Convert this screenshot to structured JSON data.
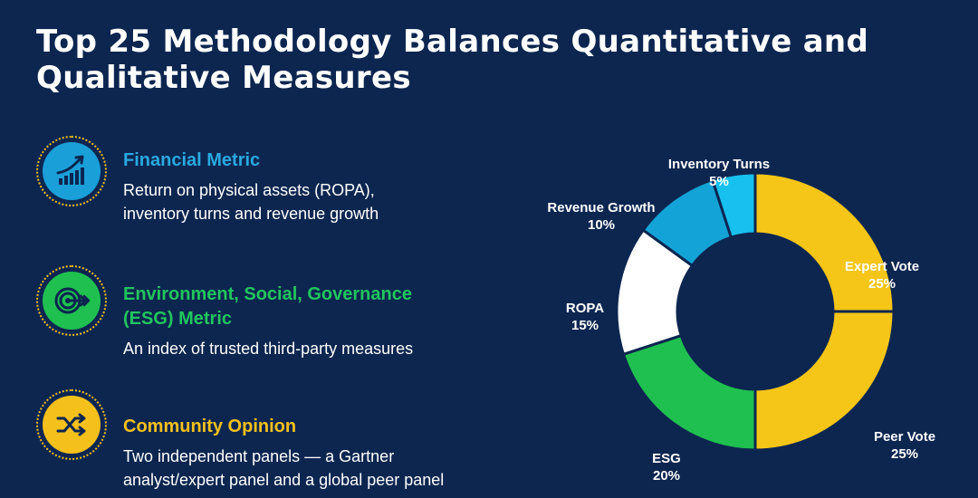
{
  "title": {
    "line1": "Top 25 Methodology Balances Quantitative and",
    "line2": "Qualitative Measures"
  },
  "items": [
    {
      "heading": "Financial Metric",
      "heading_color": "#2aa9e0",
      "desc_line1": "Return on physical assets (ROPA),",
      "desc_line2": "inventory turns and revenue growth",
      "icon": "growth-chart-icon",
      "icon_color": "#1a9fd8"
    },
    {
      "heading_line1": "Environment, Social, Governance",
      "heading_line2": "(ESG) Metric",
      "heading_color": "#22c55e",
      "desc_line1": "An index of trusted third-party measures",
      "icon": "target-arrow-icon",
      "icon_color": "#1fc04f"
    },
    {
      "heading": "Community Opinion",
      "heading_color": "#f4c01c",
      "desc_line1": "Two independent panels — a Gartner",
      "desc_line2": "analyst/expert panel and a global peer panel",
      "icon": "shuffle-icon",
      "icon_color": "#f4c01c"
    }
  ],
  "chart_data": {
    "type": "pie",
    "style": "donut",
    "slices": [
      {
        "label": "Expert Vote",
        "value": 25,
        "value_label": "25%",
        "color": "#f5c518"
      },
      {
        "label": "Peer Vote",
        "value": 25,
        "value_label": "25%",
        "color": "#f5c518"
      },
      {
        "label": "ESG",
        "value": 20,
        "value_label": "20%",
        "color": "#1fc04f"
      },
      {
        "label": "ROPA",
        "value": 15,
        "value_label": "15%",
        "color": "#ffffff"
      },
      {
        "label": "Revenue Growth",
        "value": 10,
        "value_label": "10%",
        "color": "#14a3d6"
      },
      {
        "label": "Inventory Turns",
        "value": 5,
        "value_label": "5%",
        "color": "#17c0ee"
      }
    ]
  }
}
